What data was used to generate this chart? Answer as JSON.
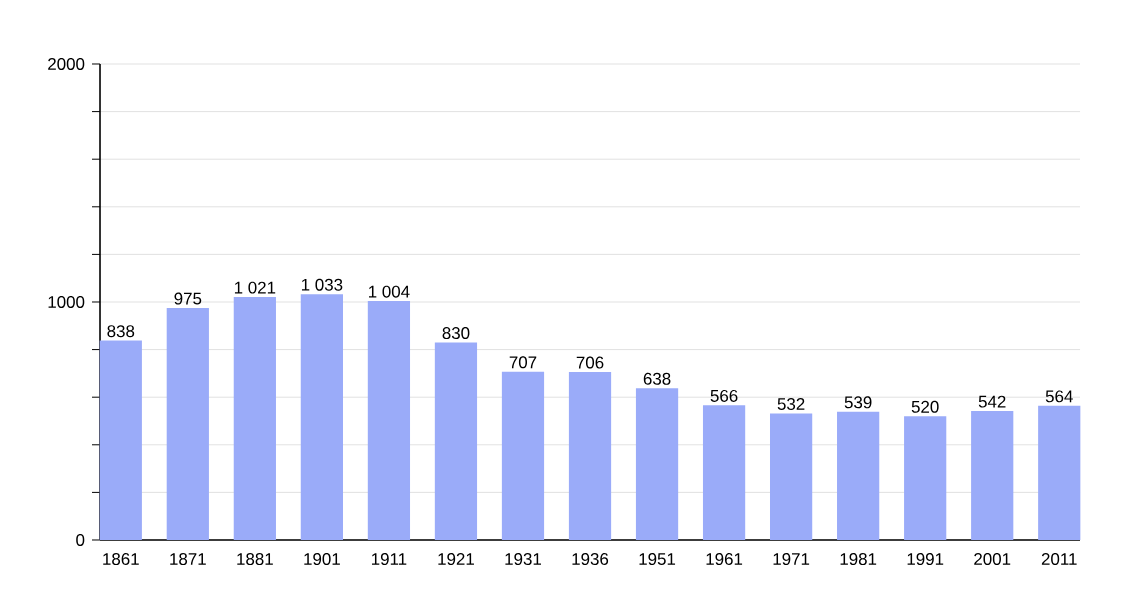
{
  "chart_data": {
    "type": "bar",
    "categories": [
      "1861",
      "1871",
      "1881",
      "1901",
      "1911",
      "1921",
      "1931",
      "1936",
      "1951",
      "1961",
      "1971",
      "1981",
      "1991",
      "2001",
      "2011"
    ],
    "values": [
      838,
      975,
      1021,
      1033,
      1004,
      830,
      707,
      706,
      638,
      566,
      532,
      539,
      520,
      542,
      564
    ],
    "value_labels": [
      "838",
      "975",
      "1 021",
      "1 033",
      "1 004",
      "830",
      "707",
      "706",
      "638",
      "566",
      "532",
      "539",
      "520",
      "542",
      "564"
    ],
    "color": "#9aabf9",
    "ylim": [
      0,
      2000
    ],
    "yticks": [
      0,
      {
        "value": 200,
        "label": null
      },
      {
        "value": 400,
        "label": null
      },
      {
        "value": 600,
        "label": null
      },
      {
        "value": 800,
        "label": null
      },
      1000,
      {
        "value": 1200,
        "label": null
      },
      {
        "value": 1400,
        "label": null
      },
      {
        "value": 1600,
        "label": null
      },
      {
        "value": 1800,
        "label": null
      },
      2000
    ],
    "grid": true
  }
}
